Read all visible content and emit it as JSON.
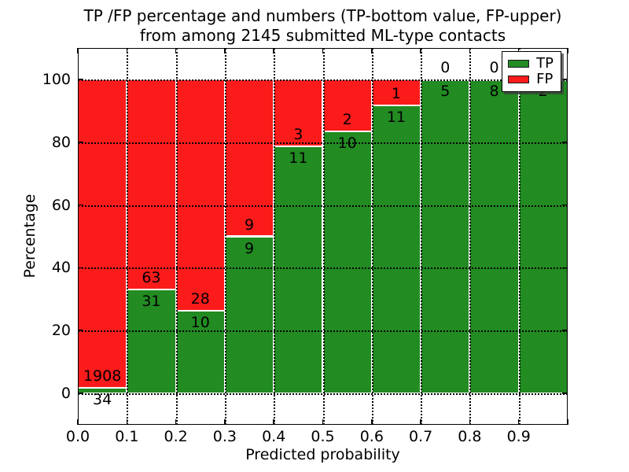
{
  "chart_data": {
    "type": "bar",
    "stacked": true,
    "title_lines": [
      "TP /FP percentage and numbers (TP-bottom value, FP-upper)",
      "from among 2145 submitted ML-type contacts"
    ],
    "xlabel": "Predicted probability",
    "ylabel": "Percentage",
    "total_contacts": 2145,
    "categories": [
      "0.0-0.1",
      "0.1-0.2",
      "0.2-0.3",
      "0.3-0.4",
      "0.4-0.5",
      "0.5-0.6",
      "0.6-0.7",
      "0.7-0.8",
      "0.8-0.9",
      "0.9-1.0"
    ],
    "bin_width": 0.1,
    "series": [
      {
        "name": "TP",
        "color": "#228b22",
        "counts": [
          34,
          31,
          10,
          9,
          11,
          10,
          11,
          5,
          8,
          2
        ]
      },
      {
        "name": "FP",
        "color": "#fb1b1b",
        "counts": [
          1908,
          63,
          28,
          9,
          3,
          2,
          1,
          0,
          0,
          0
        ]
      }
    ],
    "value_axis": "percentage of bin total (TP% bottom, FP% top, stacks sum to 100)",
    "xlim": [
      0.0,
      1.0
    ],
    "ylim": [
      -10,
      110
    ],
    "xticks": [
      "0.0",
      "0.1",
      "0.2",
      "0.3",
      "0.4",
      "0.5",
      "0.6",
      "0.7",
      "0.8",
      "0.9"
    ],
    "yticks": [
      0,
      20,
      40,
      60,
      80,
      100
    ],
    "grid": "dotted black, both axes",
    "legend": {
      "position": "upper-right",
      "entries": [
        "TP",
        "FP"
      ]
    },
    "colors": {
      "tp": "#228b22",
      "fp": "#fb1b1b",
      "text": "#000000",
      "background": "#ffffff"
    }
  }
}
